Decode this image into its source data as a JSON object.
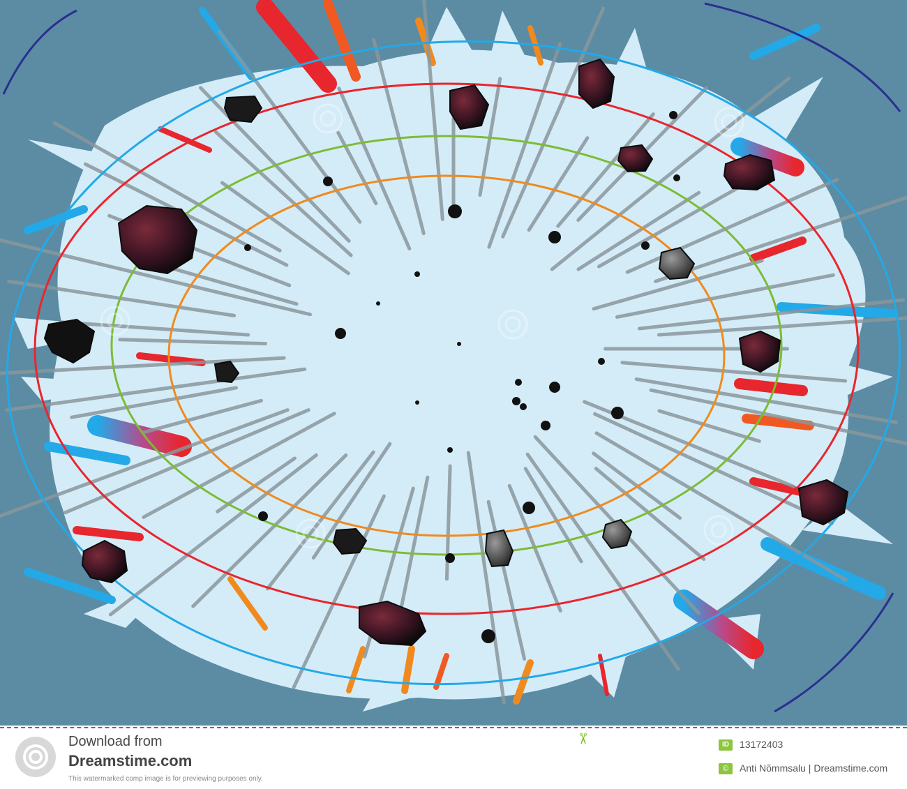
{
  "illustration": {
    "subject": "asteroid-explosion-with-rings",
    "colors": {
      "background": "#5b8ca4",
      "burst": "#d4ecf7",
      "ring_navy": "#2a2f8f",
      "ring_blue": "#23a9e8",
      "ring_red": "#e8262d",
      "ring_green": "#7dbb35",
      "ring_orange": "#f08a1e",
      "streak_gray": "#8a969c",
      "rock": "#2a1a22"
    },
    "watermark": "dreamstime"
  },
  "footer": {
    "download_label": "Download from",
    "site_name": "Dreamstime.com",
    "disclaimer": "This watermarked comp image is for previewing purposes only.",
    "id_badge": "ID",
    "image_id": "13172403",
    "copyright_badge": "©",
    "credit": "Anti Nõmmsalu | Dreamstime.com"
  }
}
